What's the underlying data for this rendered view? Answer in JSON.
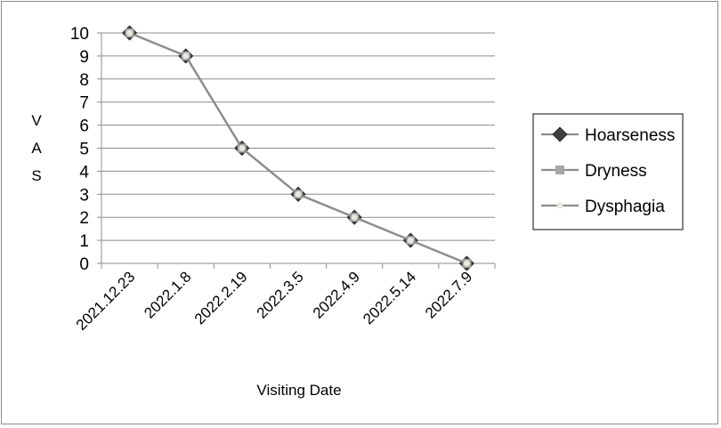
{
  "chart_data": {
    "type": "line",
    "categories": [
      "2021.12.23",
      "2022.1.8",
      "2022.2.19",
      "2022.3.5",
      "2022.4.9",
      "2022.5.14",
      "2022.7.9"
    ],
    "series": [
      {
        "name": "Hoarseness",
        "values": [
          10,
          9,
          5,
          3,
          2,
          1,
          0
        ],
        "color": "#404040",
        "marker": "diamond"
      },
      {
        "name": "Dryness",
        "values": [
          10,
          9,
          5,
          3,
          2,
          1,
          0
        ],
        "color": "#a6a6a6",
        "marker": "square"
      },
      {
        "name": "Dysphagia",
        "values": [
          10,
          9,
          5,
          3,
          2,
          1,
          0
        ],
        "color": "#e8e8e0",
        "marker": "circle"
      }
    ],
    "line_color": "#8c8c8c",
    "xlabel": "Visiting Date",
    "ylabel": "VAS",
    "ylim": [
      0,
      10
    ],
    "yticks": [
      0,
      1,
      2,
      3,
      4,
      5,
      6,
      7,
      8,
      9,
      10
    ],
    "grid": true,
    "legend": "right"
  }
}
